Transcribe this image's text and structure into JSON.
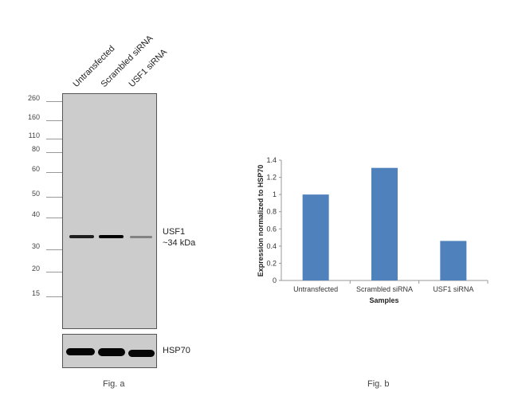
{
  "figure_a": {
    "lane_labels": [
      "Untransfected",
      "Scrambled siRNA",
      "USF1 siRNA"
    ],
    "mw_markers": [
      "260",
      "160",
      "110",
      "80",
      "60",
      "50",
      "40",
      "30",
      "20",
      "15"
    ],
    "band_label_line1": "USF1",
    "band_label_line2": "~34 kDa",
    "loading_control_label": "HSP70",
    "caption": "Fig. a",
    "usf1_band_intensity": [
      0.85,
      1.0,
      0.35
    ]
  },
  "figure_b": {
    "caption": "Fig. b"
  },
  "chart_data": {
    "type": "bar",
    "categories": [
      "Untransfected",
      "Scrambled siRNA",
      "USF1 siRNA"
    ],
    "values": [
      1.0,
      1.31,
      0.46
    ],
    "xlabel": "Samples",
    "ylabel": "Expression normalized to HSP70",
    "ylim": [
      0,
      1.4
    ],
    "yticks": [
      "0",
      "0.2",
      "0.4",
      "0.6",
      "0.8",
      "1",
      "1.2",
      "1.4"
    ],
    "bar_color": "#4f81bd",
    "grid": false
  }
}
